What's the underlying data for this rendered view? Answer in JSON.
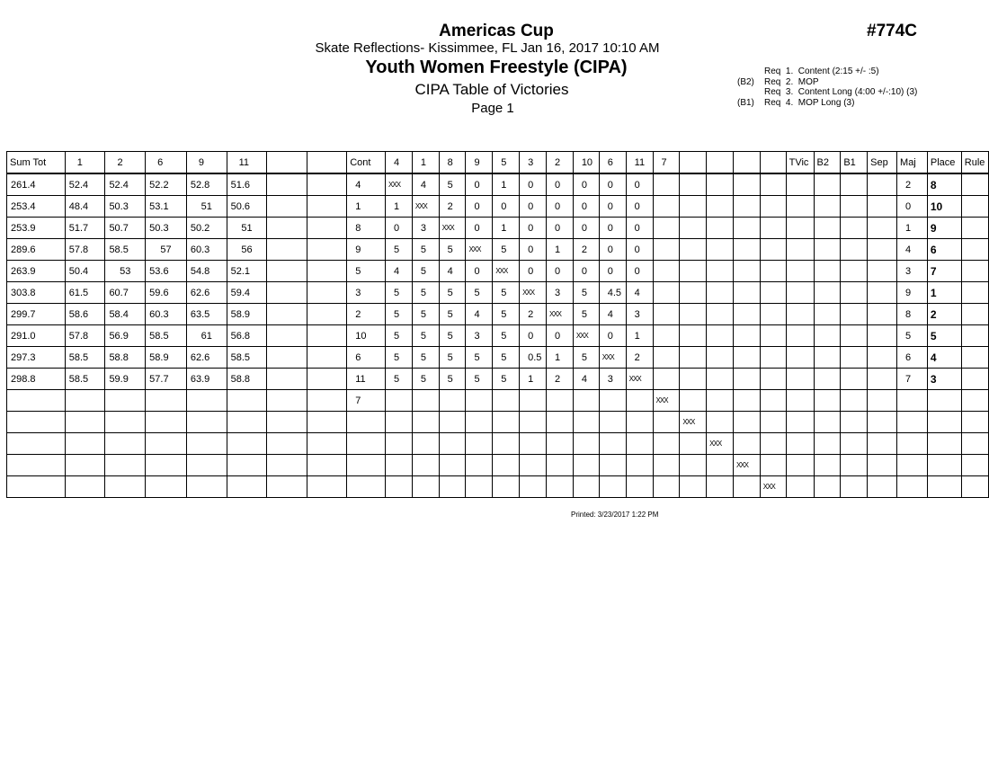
{
  "header": {
    "event_title": "Americas Cup",
    "venue_date": "Skate Reflections- Kissimmee, FL  Jan 16, 2017  10:10 AM",
    "category": "Youth Women Freestyle (CIPA)",
    "table_title": "CIPA Table of Victories",
    "page": "Page 1",
    "ref_number": "#774C"
  },
  "requirements": [
    {
      "prefix": "",
      "text": "Req  1.  Content (2:15 +/- :5)"
    },
    {
      "prefix": "(B2)",
      "text": "Req  2.  MOP"
    },
    {
      "prefix": "",
      "text": "Req  3.  Content Long (4:00 +/-:10) (3)"
    },
    {
      "prefix": "(B1)",
      "text": "Req  4.  MOP Long (3)"
    }
  ],
  "table": {
    "columns": [
      "Sum Tot",
      "1",
      "2",
      "6",
      "9",
      "11",
      "",
      "",
      "Cont",
      "4",
      "1",
      "8",
      "9",
      "5",
      "3",
      "2",
      "10",
      "6",
      "11",
      "7",
      "",
      "",
      "",
      "",
      "TVic",
      "B2",
      "B1",
      "Sep",
      "Maj",
      "Place",
      "Rule"
    ],
    "rows": [
      [
        "261.4",
        "52.4",
        "52.4",
        "52.2",
        "52.8",
        "51.6",
        "",
        "",
        "4",
        "XXX",
        "4",
        "5",
        "0",
        "1",
        "0",
        "0",
        "0",
        "0",
        "0",
        "",
        "",
        "",
        "",
        "",
        "",
        "",
        "",
        "",
        "2",
        "8",
        ""
      ],
      [
        "253.4",
        "48.4",
        "50.3",
        "53.1",
        "51",
        "50.6",
        "",
        "",
        "1",
        "1",
        "XXX",
        "2",
        "0",
        "0",
        "0",
        "0",
        "0",
        "0",
        "0",
        "",
        "",
        "",
        "",
        "",
        "",
        "",
        "",
        "",
        "0",
        "10",
        ""
      ],
      [
        "253.9",
        "51.7",
        "50.7",
        "50.3",
        "50.2",
        "51",
        "",
        "",
        "8",
        "0",
        "3",
        "XXX",
        "0",
        "1",
        "0",
        "0",
        "0",
        "0",
        "0",
        "",
        "",
        "",
        "",
        "",
        "",
        "",
        "",
        "",
        "1",
        "9",
        ""
      ],
      [
        "289.6",
        "57.8",
        "58.5",
        "57",
        "60.3",
        "56",
        "",
        "",
        "9",
        "5",
        "5",
        "5",
        "XXX",
        "5",
        "0",
        "1",
        "2",
        "0",
        "0",
        "",
        "",
        "",
        "",
        "",
        "",
        "",
        "",
        "",
        "4",
        "6",
        ""
      ],
      [
        "263.9",
        "50.4",
        "53",
        "53.6",
        "54.8",
        "52.1",
        "",
        "",
        "5",
        "4",
        "5",
        "4",
        "0",
        "XXX",
        "0",
        "0",
        "0",
        "0",
        "0",
        "",
        "",
        "",
        "",
        "",
        "",
        "",
        "",
        "",
        "3",
        "7",
        ""
      ],
      [
        "303.8",
        "61.5",
        "60.7",
        "59.6",
        "62.6",
        "59.4",
        "",
        "",
        "3",
        "5",
        "5",
        "5",
        "5",
        "5",
        "XXX",
        "3",
        "5",
        "4.5",
        "4",
        "",
        "",
        "",
        "",
        "",
        "",
        "",
        "",
        "",
        "9",
        "1",
        ""
      ],
      [
        "299.7",
        "58.6",
        "58.4",
        "60.3",
        "63.5",
        "58.9",
        "",
        "",
        "2",
        "5",
        "5",
        "5",
        "4",
        "5",
        "2",
        "XXX",
        "5",
        "4",
        "3",
        "",
        "",
        "",
        "",
        "",
        "",
        "",
        "",
        "",
        "8",
        "2",
        ""
      ],
      [
        "291.0",
        "57.8",
        "56.9",
        "58.5",
        "61",
        "56.8",
        "",
        "",
        "10",
        "5",
        "5",
        "5",
        "3",
        "5",
        "0",
        "0",
        "XXX",
        "0",
        "1",
        "",
        "",
        "",
        "",
        "",
        "",
        "",
        "",
        "",
        "5",
        "5",
        ""
      ],
      [
        "297.3",
        "58.5",
        "58.8",
        "58.9",
        "62.6",
        "58.5",
        "",
        "",
        "6",
        "5",
        "5",
        "5",
        "5",
        "5",
        "0.5",
        "1",
        "5",
        "XXX",
        "2",
        "",
        "",
        "",
        "",
        "",
        "",
        "",
        "",
        "",
        "6",
        "4",
        ""
      ],
      [
        "298.8",
        "58.5",
        "59.9",
        "57.7",
        "63.9",
        "58.8",
        "",
        "",
        "11",
        "5",
        "5",
        "5",
        "5",
        "5",
        "1",
        "2",
        "4",
        "3",
        "XXX",
        "",
        "",
        "",
        "",
        "",
        "",
        "",
        "",
        "",
        "7",
        "3",
        ""
      ],
      [
        "",
        "",
        "",
        "",
        "",
        "",
        "",
        "",
        "7",
        "",
        "",
        "",
        "",
        "",
        "",
        "",
        "",
        "",
        "",
        "XXX",
        "",
        "",
        "",
        "",
        "",
        "",
        "",
        "",
        "",
        "",
        ""
      ],
      [
        "",
        "",
        "",
        "",
        "",
        "",
        "",
        "",
        "",
        "",
        "",
        "",
        "",
        "",
        "",
        "",
        "",
        "",
        "",
        "",
        "XXX",
        "",
        "",
        "",
        "",
        "",
        "",
        "",
        "",
        "",
        ""
      ],
      [
        "",
        "",
        "",
        "",
        "",
        "",
        "",
        "",
        "",
        "",
        "",
        "",
        "",
        "",
        "",
        "",
        "",
        "",
        "",
        "",
        "",
        "XXX",
        "",
        "",
        "",
        "",
        "",
        "",
        "",
        "",
        ""
      ],
      [
        "",
        "",
        "",
        "",
        "",
        "",
        "",
        "",
        "",
        "",
        "",
        "",
        "",
        "",
        "",
        "",
        "",
        "",
        "",
        "",
        "",
        "",
        "XXX",
        "",
        "",
        "",
        "",
        "",
        "",
        "",
        ""
      ],
      [
        "",
        "",
        "",
        "",
        "",
        "",
        "",
        "",
        "",
        "",
        "",
        "",
        "",
        "",
        "",
        "",
        "",
        "",
        "",
        "",
        "",
        "",
        "",
        "XXX",
        "",
        "",
        "",
        "",
        "",
        "",
        ""
      ]
    ]
  },
  "footer": {
    "printed": "Printed:  3/23/2017  1:22 PM"
  }
}
